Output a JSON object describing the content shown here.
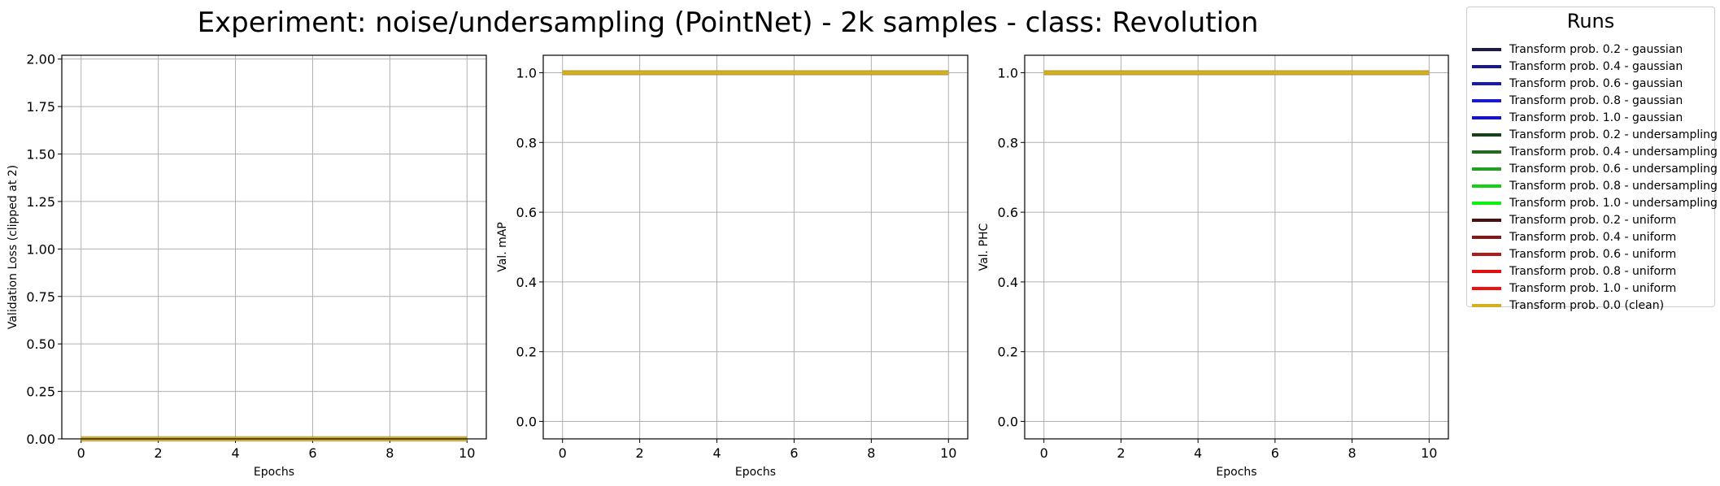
{
  "figure": {
    "title": "Experiment: noise/undersampling (PointNet) - 2k samples - class: Revolution"
  },
  "legend": {
    "title": "Runs",
    "entries": [
      {
        "label": "Transform prob. 0.2 - gaussian",
        "color": "#1a1a4d"
      },
      {
        "label": "Transform prob. 0.4 - gaussian",
        "color": "#1a1a80"
      },
      {
        "label": "Transform prob. 0.6 - gaussian",
        "color": "#1a1ab3"
      },
      {
        "label": "Transform prob. 0.8 - gaussian",
        "color": "#1a1acc"
      },
      {
        "label": "Transform prob. 1.0 - gaussian",
        "color": "#1010e0"
      },
      {
        "label": "Transform prob. 0.2 - undersampling",
        "color": "#1a401a"
      },
      {
        "label": "Transform prob. 0.4 - undersampling",
        "color": "#1e6e1e"
      },
      {
        "label": "Transform prob. 0.6 - undersampling",
        "color": "#22a022"
      },
      {
        "label": "Transform prob. 0.8 - undersampling",
        "color": "#16d016"
      },
      {
        "label": "Transform prob. 1.0 - undersampling",
        "color": "#10f010"
      },
      {
        "label": "Transform prob. 0.2 - uniform",
        "color": "#4d1010"
      },
      {
        "label": "Transform prob. 0.4 - uniform",
        "color": "#801a1a"
      },
      {
        "label": "Transform prob. 0.6 - uniform",
        "color": "#b31a1a"
      },
      {
        "label": "Transform prob. 0.8 - uniform",
        "color": "#e01010"
      },
      {
        "label": "Transform prob. 1.0 - uniform",
        "color": "#f01010"
      },
      {
        "label": "Transform prob. 0.0 (clean)",
        "color": "#d4af1e"
      }
    ]
  },
  "chart_data": [
    {
      "type": "line",
      "xlabel": "Epochs",
      "ylabel": "Validation Loss (clipped at 2)",
      "xlim": [
        -0.5,
        10.5
      ],
      "ylim": [
        0,
        2.02
      ],
      "xticks": [
        "0",
        "2",
        "4",
        "6",
        "8",
        "10"
      ],
      "yticks": [
        "0.00",
        "0.25",
        "0.50",
        "0.75",
        "1.00",
        "1.25",
        "1.50",
        "1.75",
        "2.00"
      ],
      "grid": true,
      "x": [
        0,
        1,
        2,
        3,
        4,
        5,
        6,
        7,
        8,
        9,
        10
      ],
      "y": [
        0,
        0,
        0,
        0,
        0,
        0,
        0,
        0,
        0,
        0,
        0
      ]
    },
    {
      "type": "line",
      "xlabel": "Epochs",
      "ylabel": "Val. mAP",
      "xlim": [
        -0.5,
        10.5
      ],
      "ylim": [
        -0.05,
        1.05
      ],
      "xticks": [
        "0",
        "2",
        "4",
        "6",
        "8",
        "10"
      ],
      "yticks": [
        "0.0",
        "0.2",
        "0.4",
        "0.6",
        "0.8",
        "1.0"
      ],
      "grid": true,
      "x": [
        0,
        1,
        2,
        3,
        4,
        5,
        6,
        7,
        8,
        9,
        10
      ],
      "y": [
        1,
        1,
        1,
        1,
        1,
        1,
        1,
        1,
        1,
        1,
        1
      ]
    },
    {
      "type": "line",
      "xlabel": "Epochs",
      "ylabel": "Val. PHC",
      "xlim": [
        -0.5,
        10.5
      ],
      "ylim": [
        -0.05,
        1.05
      ],
      "xticks": [
        "0",
        "2",
        "4",
        "6",
        "8",
        "10"
      ],
      "yticks": [
        "0.0",
        "0.2",
        "0.4",
        "0.6",
        "0.8",
        "1.0"
      ],
      "grid": true,
      "x": [
        0,
        1,
        2,
        3,
        4,
        5,
        6,
        7,
        8,
        9,
        10
      ],
      "y": [
        1,
        1,
        1,
        1,
        1,
        1,
        1,
        1,
        1,
        1,
        1
      ]
    }
  ]
}
